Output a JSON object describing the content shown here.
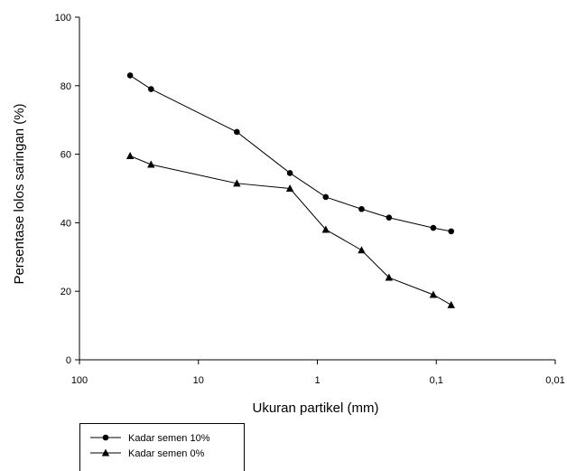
{
  "chart_data": {
    "type": "line",
    "xscale": "log-reversed",
    "xlim": [
      100,
      0.01
    ],
    "ylim": [
      0,
      100
    ],
    "xticks": [
      100,
      10,
      1,
      0.1,
      0.01
    ],
    "xtick_labels": [
      "100",
      "10",
      "1",
      "0,1",
      "0,01"
    ],
    "yticks": [
      0,
      20,
      40,
      60,
      80,
      100
    ],
    "ytick_labels": [
      "0",
      "20",
      "40",
      "60",
      "80",
      "100"
    ],
    "xlabel": "Ukuran partikel (mm)",
    "ylabel": "Persentase lolos saringan (%)",
    "grid": false,
    "legend_position": "bottom-left",
    "series": [
      {
        "name": "Kadar semen 10%",
        "marker": "circle",
        "color": "#000000",
        "x": [
          37.5,
          25,
          4.75,
          1.7,
          0.85,
          0.425,
          0.25,
          0.106,
          0.075
        ],
        "y": [
          83,
          79,
          66.5,
          54.5,
          47.5,
          44,
          41.5,
          38.5,
          37.5
        ]
      },
      {
        "name": "Kadar semen 0%",
        "marker": "triangle",
        "color": "#000000",
        "x": [
          37.5,
          25,
          4.75,
          1.7,
          0.85,
          0.425,
          0.25,
          0.106,
          0.075
        ],
        "y": [
          59.5,
          57,
          51.5,
          50,
          38,
          32,
          24,
          19,
          16
        ]
      }
    ]
  }
}
